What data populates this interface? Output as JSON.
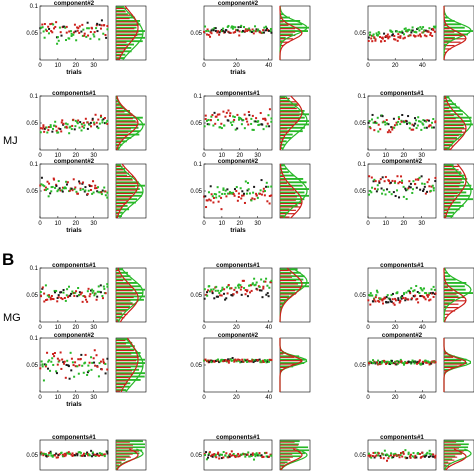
{
  "figure": {
    "section_letter": "B",
    "row_tags": [
      "MJ",
      "MG"
    ],
    "colors": {
      "red": "#cc1f1a",
      "green": "#28b828",
      "dark": "#1a1a1a",
      "axis": "#000000"
    }
  },
  "chart_data": [
    {
      "type": "scatter",
      "title": "component#2",
      "ylim": [
        0,
        0.1
      ],
      "xlim": [
        0,
        38
      ],
      "yticks": [
        "0.05",
        "0.1"
      ],
      "xticks": [
        0,
        10,
        20,
        30
      ],
      "xlabel": "trials",
      "series": [
        {
          "name": "",
          "values": []
        }
      ],
      "mean": 0.055,
      "spread": 0.03,
      "trend": 0,
      "hist_peak_red": 0.06,
      "hist_peak_green": 0.05
    },
    {
      "type": "scatter",
      "title": "component#2",
      "ylim": [
        0,
        0.1
      ],
      "xlim": [
        0,
        42
      ],
      "yticks": [
        "0.05"
      ],
      "xticks": [
        0,
        20,
        40
      ],
      "xlabel": "trials",
      "mean": 0.055,
      "spread": 0.012,
      "trend": 0,
      "hist_peak_red": 0.05,
      "hist_peak_green": 0.06
    },
    {
      "type": "scatter",
      "title": "",
      "ylim": [
        0,
        0.1
      ],
      "xlim": [
        0,
        50
      ],
      "yticks": [
        "0.05"
      ],
      "xticks": [
        0,
        20,
        40
      ],
      "xlabel": "",
      "mean": 0.05,
      "spread": 0.012,
      "trend": 0.015,
      "hist_peak_red": 0.04,
      "hist_peak_green": 0.055
    },
    {
      "type": "scatter",
      "title": "components#1",
      "ylim": [
        0,
        0.1
      ],
      "xlim": [
        0,
        38
      ],
      "yticks": [
        "0.05",
        "0.1"
      ],
      "xticks": [
        0,
        10,
        20,
        30
      ],
      "xlabel": "",
      "mean": 0.045,
      "spread": 0.02,
      "trend": 0.015,
      "hist_peak_red": 0.05,
      "hist_peak_green": 0.045
    },
    {
      "type": "scatter",
      "title": "components#1",
      "ylim": [
        0,
        0.1
      ],
      "xlim": [
        0,
        38
      ],
      "yticks": [
        "0.05",
        "0.1"
      ],
      "xticks": [
        0,
        10,
        20,
        30
      ],
      "xlabel": "",
      "mean": 0.05,
      "spread": 0.025,
      "trend": 0,
      "hist_peak_red": 0.07,
      "hist_peak_green": 0.055
    },
    {
      "type": "scatter",
      "title": "components#1",
      "ylim": [
        0,
        0.1
      ],
      "xlim": [
        0,
        38
      ],
      "yticks": [
        "0.05",
        "0.1"
      ],
      "xticks": [
        0,
        10,
        20,
        30
      ],
      "xlabel": "",
      "mean": 0.05,
      "spread": 0.025,
      "trend": 0,
      "hist_peak_red": 0.04,
      "hist_peak_green": 0.05
    },
    {
      "type": "scatter",
      "title": "component#2",
      "ylim": [
        0,
        0.1
      ],
      "xlim": [
        0,
        38
      ],
      "yticks": [
        "0.05",
        "0.1"
      ],
      "xticks": [
        0,
        10,
        20,
        30
      ],
      "xlabel": "trials",
      "mean": 0.055,
      "spread": 0.025,
      "trend": -0.01,
      "hist_peak_red": 0.06,
      "hist_peak_green": 0.05
    },
    {
      "type": "scatter",
      "title": "component#2",
      "ylim": [
        0,
        0.1
      ],
      "xlim": [
        0,
        38
      ],
      "yticks": [
        "0.05",
        "0.1"
      ],
      "xticks": [
        0,
        10,
        20,
        30
      ],
      "xlabel": "trials",
      "mean": 0.05,
      "spread": 0.025,
      "trend": 0.01,
      "hist_peak_red": 0.03,
      "hist_peak_green": 0.05
    },
    {
      "type": "scatter",
      "title": "component#2",
      "ylim": [
        0,
        0.1
      ],
      "xlim": [
        0,
        38
      ],
      "yticks": [
        "0.05",
        "0.1"
      ],
      "xticks": [
        0,
        10,
        20,
        30
      ],
      "xlabel": "",
      "mean": 0.06,
      "spread": 0.03,
      "trend": 0,
      "hist_peak_red": 0.07,
      "hist_peak_green": 0.05
    },
    {
      "type": "scatter",
      "title": "components#1",
      "ylim": [
        0,
        0.1
      ],
      "xlim": [
        0,
        38
      ],
      "yticks": [
        "0.05",
        "0.1"
      ],
      "xticks": [
        0,
        10,
        20,
        30
      ],
      "xlabel": "",
      "mean": 0.055,
      "spread": 0.025,
      "trend": 0,
      "hist_peak_red": 0.045,
      "hist_peak_green": 0.055
    },
    {
      "type": "scatter",
      "title": "components#1",
      "ylim": [
        0,
        0.1
      ],
      "xlim": [
        0,
        42
      ],
      "yticks": [
        "0.05"
      ],
      "xticks": [
        0,
        20,
        40
      ],
      "xlabel": "",
      "mean": 0.05,
      "spread": 0.02,
      "trend": 0.01,
      "hist_peak_red": 0.07,
      "hist_peak_green": 0.075
    },
    {
      "type": "scatter",
      "title": "components#1",
      "ylim": [
        0,
        0.1
      ],
      "xlim": [
        0,
        50
      ],
      "yticks": [
        "0.05"
      ],
      "xticks": [
        0,
        20,
        40
      ],
      "xlabel": "",
      "mean": 0.045,
      "spread": 0.015,
      "trend": 0.012,
      "hist_peak_red": 0.04,
      "hist_peak_green": 0.06
    },
    {
      "type": "scatter",
      "title": "component#2",
      "ylim": [
        0,
        0.1
      ],
      "xlim": [
        0,
        38
      ],
      "yticks": [
        "0.05",
        "0.1"
      ],
      "xticks": [
        0,
        10,
        20,
        30
      ],
      "xlabel": "trials",
      "mean": 0.05,
      "spread": 0.035,
      "trend": 0,
      "hist_peak_red": 0.06,
      "hist_peak_green": 0.05
    },
    {
      "type": "scatter",
      "title": "component#2",
      "ylim": [
        0,
        0.1
      ],
      "xlim": [
        0,
        42
      ],
      "yticks": [
        "0.05"
      ],
      "xticks": [
        0,
        20,
        40
      ],
      "xlabel": "",
      "mean": 0.058,
      "spread": 0.006,
      "trend": 0,
      "hist_peak_red": 0.058,
      "hist_peak_green": 0.058
    },
    {
      "type": "scatter",
      "title": "component#2",
      "ylim": [
        0,
        0.1
      ],
      "xlim": [
        0,
        50
      ],
      "yticks": [
        "0.05"
      ],
      "xticks": [
        0,
        20,
        40
      ],
      "xlabel": "",
      "mean": 0.055,
      "spread": 0.006,
      "trend": 0,
      "hist_peak_red": 0.055,
      "hist_peak_green": 0.055
    },
    {
      "type": "scatter",
      "title": "components#1",
      "ylim": [
        0,
        0.1
      ],
      "xlim": [
        0,
        38
      ],
      "yticks": [
        "0.05"
      ],
      "xticks": [],
      "xlabel": "",
      "mean": 0.05,
      "spread": 0.02,
      "trend": 0,
      "hist_peak_red": 0.05,
      "hist_peak_green": 0.055
    },
    {
      "type": "scatter",
      "title": "components#1",
      "ylim": [
        0,
        0.1
      ],
      "xlim": [
        0,
        38
      ],
      "yticks": [
        "0.05"
      ],
      "xticks": [],
      "xlabel": "",
      "mean": 0.05,
      "spread": 0.02,
      "trend": 0,
      "hist_peak_red": 0.05,
      "hist_peak_green": 0.05
    },
    {
      "type": "scatter",
      "title": "components#1",
      "ylim": [
        0,
        0.1
      ],
      "xlim": [
        0,
        38
      ],
      "yticks": [
        "0.05"
      ],
      "xticks": [],
      "xlabel": "",
      "mean": 0.05,
      "spread": 0.02,
      "trend": 0,
      "hist_peak_red": 0.045,
      "hist_peak_green": 0.055
    }
  ]
}
